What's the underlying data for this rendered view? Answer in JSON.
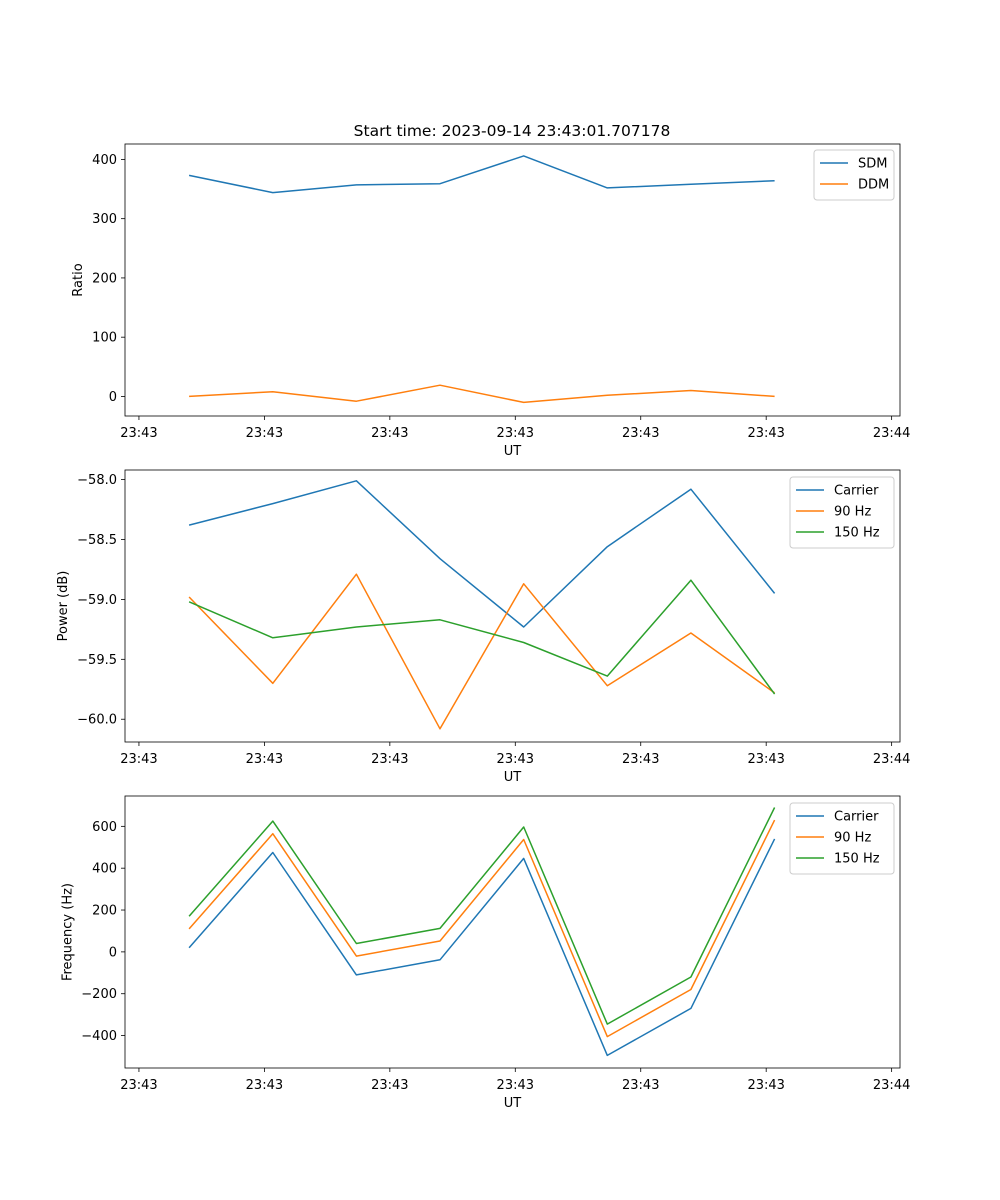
{
  "figure_title": "Start time: 2023-09-14 23:43:01.707178",
  "colors": {
    "blue": "#1f77b4",
    "orange": "#ff7f0e",
    "green": "#2ca02c"
  },
  "chart_data": [
    {
      "type": "line",
      "title": "Start time: 2023-09-14 23:43:01.707178",
      "xlabel": "UT",
      "ylabel": "Ratio",
      "x": [
        1,
        2,
        3,
        4,
        5,
        6,
        7,
        8
      ],
      "xlim": [
        0.2333,
        9.5
      ],
      "xticks": [
        0.4,
        1.9,
        3.4,
        4.9,
        6.4,
        7.9,
        9.4
      ],
      "xtick_labels": [
        "23:43",
        "23:43",
        "23:43",
        "23:43",
        "23:43",
        "23:43",
        "23:44"
      ],
      "ylim": [
        -33,
        426
      ],
      "yticks": [
        0,
        100,
        200,
        300,
        400
      ],
      "ytick_labels": [
        "0",
        "100",
        "200",
        "300",
        "400"
      ],
      "legend": "top-right",
      "grid": false,
      "series": [
        {
          "name": "SDM",
          "color": "#1f77b4",
          "values": [
            373,
            344,
            357,
            359,
            406,
            352,
            358,
            364
          ]
        },
        {
          "name": "DDM",
          "color": "#ff7f0e",
          "values": [
            0,
            8,
            -8,
            19,
            -10,
            2,
            10,
            0
          ]
        }
      ]
    },
    {
      "type": "line",
      "title": "",
      "xlabel": "UT",
      "ylabel": "Power (dB)",
      "x": [
        1,
        2,
        3,
        4,
        5,
        6,
        7,
        8
      ],
      "xlim": [
        0.2333,
        9.5
      ],
      "xticks": [
        0.4,
        1.9,
        3.4,
        4.9,
        6.4,
        7.9,
        9.4
      ],
      "xtick_labels": [
        "23:43",
        "23:43",
        "23:43",
        "23:43",
        "23:43",
        "23:43",
        "23:44"
      ],
      "ylim": [
        -60.19,
        -57.92
      ],
      "yticks": [
        -60.0,
        -59.5,
        -59.0,
        -58.5,
        -58.0
      ],
      "ytick_labels": [
        "−60.0",
        "−59.5",
        "−59.0",
        "−58.5",
        "−58.0"
      ],
      "legend": "top-right",
      "grid": false,
      "series": [
        {
          "name": "Carrier",
          "color": "#1f77b4",
          "values": [
            -58.38,
            -58.2,
            -58.01,
            -58.66,
            -59.23,
            -58.56,
            -58.08,
            -58.95
          ]
        },
        {
          "name": "90 Hz",
          "color": "#ff7f0e",
          "values": [
            -58.98,
            -59.7,
            -58.79,
            -60.08,
            -58.87,
            -59.72,
            -59.28,
            -59.78
          ]
        },
        {
          "name": "150 Hz",
          "color": "#2ca02c",
          "values": [
            -59.02,
            -59.32,
            -59.23,
            -59.17,
            -59.36,
            -59.64,
            -58.84,
            -59.79
          ]
        }
      ]
    },
    {
      "type": "line",
      "title": "",
      "xlabel": "UT",
      "ylabel": "Frequency (Hz)",
      "x": [
        1,
        2,
        3,
        4,
        5,
        6,
        7,
        8
      ],
      "xlim": [
        0.2333,
        9.5
      ],
      "xticks": [
        0.4,
        1.9,
        3.4,
        4.9,
        6.4,
        7.9,
        9.4
      ],
      "xtick_labels": [
        "23:43",
        "23:43",
        "23:43",
        "23:43",
        "23:43",
        "23:43",
        "23:44"
      ],
      "ylim": [
        -555,
        745
      ],
      "yticks": [
        -400,
        -200,
        0,
        200,
        400,
        600
      ],
      "ytick_labels": [
        "−400",
        "−200",
        "0",
        "200",
        "400",
        "600"
      ],
      "legend": "top-right",
      "grid": false,
      "series": [
        {
          "name": "Carrier",
          "color": "#1f77b4",
          "values": [
            20,
            475,
            -110,
            -38,
            447,
            -495,
            -270,
            540
          ]
        },
        {
          "name": "90 Hz",
          "color": "#ff7f0e",
          "values": [
            110,
            565,
            -20,
            52,
            537,
            -405,
            -180,
            630
          ]
        },
        {
          "name": "150 Hz",
          "color": "#2ca02c",
          "values": [
            170,
            625,
            40,
            112,
            597,
            -345,
            -120,
            690
          ]
        }
      ]
    }
  ]
}
